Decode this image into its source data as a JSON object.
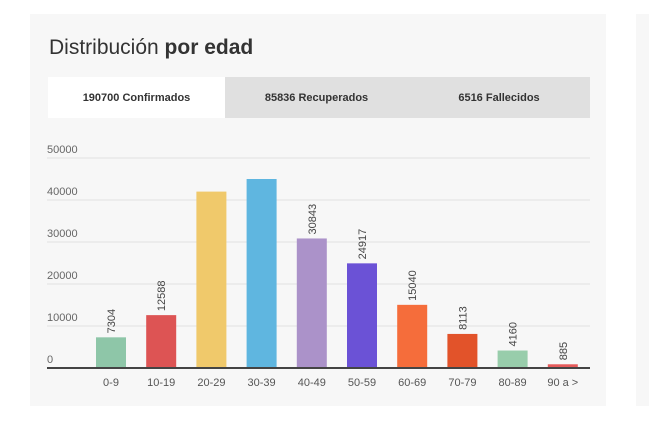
{
  "title": {
    "normal": "Distribución ",
    "bold": "por edad"
  },
  "tabs": [
    {
      "label": "190700 Confirmados",
      "active": true
    },
    {
      "label": "85836 Recuperados",
      "active": false
    },
    {
      "label": "6516 Fallecidos",
      "active": false
    }
  ],
  "chart_data": {
    "type": "bar",
    "categories": [
      "0-9",
      "10-19",
      "20-29",
      "30-39",
      "40-49",
      "50-59",
      "60-69",
      "70-79",
      "80-89",
      "90 a >"
    ],
    "values": [
      7304,
      12588,
      42000,
      45000,
      30843,
      24917,
      15040,
      8113,
      4160,
      885
    ],
    "data_labels": [
      "7304",
      "12588",
      "",
      "",
      "30843",
      "24917",
      "15040",
      "8113",
      "4160",
      "885"
    ],
    "colors": [
      "#8ec6a8",
      "#dd5454",
      "#f0c96b",
      "#5fb6e0",
      "#ab92c9",
      "#6b52d6",
      "#f56d3b",
      "#e2532a",
      "#98cdab",
      "#e55b5b"
    ],
    "y_ticks": [
      0,
      10000,
      20000,
      30000,
      40000,
      50000
    ],
    "ylim": [
      0,
      50000
    ],
    "grid": true,
    "xlabel": "",
    "ylabel": ""
  }
}
